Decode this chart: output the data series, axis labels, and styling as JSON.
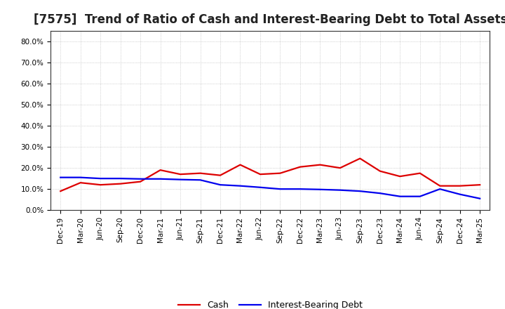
{
  "title": "[7575]  Trend of Ratio of Cash and Interest-Bearing Debt to Total Assets",
  "x_labels": [
    "Dec-19",
    "Mar-20",
    "Jun-20",
    "Sep-20",
    "Dec-20",
    "Mar-21",
    "Jun-21",
    "Sep-21",
    "Dec-21",
    "Mar-22",
    "Jun-22",
    "Sep-22",
    "Dec-22",
    "Mar-23",
    "Jun-23",
    "Sep-23",
    "Dec-23",
    "Mar-24",
    "Jun-24",
    "Sep-24",
    "Dec-24",
    "Mar-25"
  ],
  "cash": [
    0.09,
    0.13,
    0.12,
    0.125,
    0.135,
    0.19,
    0.17,
    0.175,
    0.165,
    0.215,
    0.17,
    0.175,
    0.205,
    0.215,
    0.2,
    0.245,
    0.185,
    0.16,
    0.175,
    0.115,
    0.115,
    0.12
  ],
  "ibd": [
    0.155,
    0.155,
    0.15,
    0.15,
    0.148,
    0.148,
    0.145,
    0.143,
    0.12,
    0.115,
    0.108,
    0.1,
    0.1,
    0.098,
    0.095,
    0.09,
    0.08,
    0.065,
    0.065,
    0.1,
    0.075,
    0.055
  ],
  "cash_color": "#dd0000",
  "ibd_color": "#0000ee",
  "ylim": [
    0.0,
    0.85
  ],
  "yticks": [
    0.0,
    0.1,
    0.2,
    0.3,
    0.4,
    0.5,
    0.6,
    0.7,
    0.8
  ],
  "ytick_labels": [
    "0.0%",
    "10.0%",
    "20.0%",
    "30.0%",
    "40.0%",
    "50.0%",
    "60.0%",
    "70.0%",
    "80.0%"
  ],
  "grid_color": "#aaaaaa",
  "background_color": "#ffffff",
  "legend_cash": "Cash",
  "legend_ibd": "Interest-Bearing Debt",
  "title_fontsize": 12,
  "tick_fontsize": 7.5,
  "legend_fontsize": 9,
  "line_width": 1.6
}
